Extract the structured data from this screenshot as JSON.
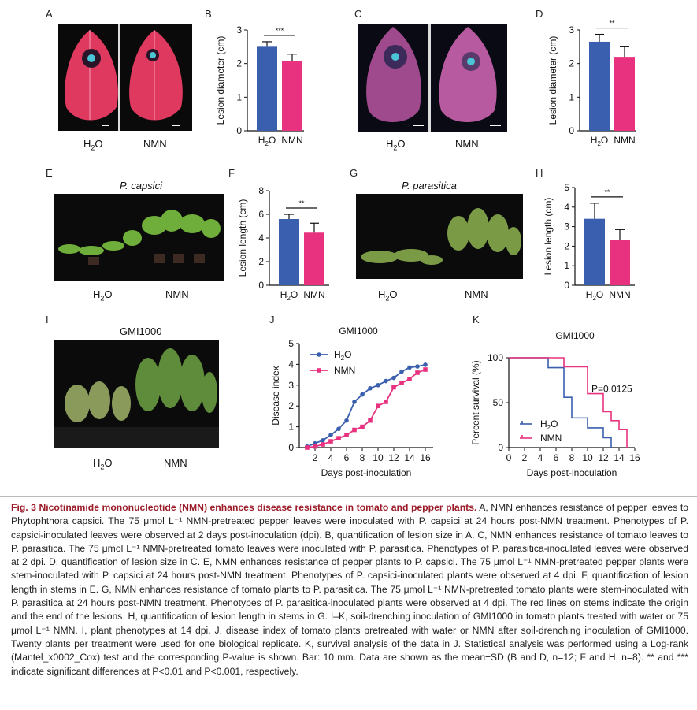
{
  "panels": {
    "A": {
      "letter": "A",
      "label_left": "H",
      "label_left_sub": "2",
      "label_left_tail": "O",
      "label_right": "NMN"
    },
    "B": {
      "letter": "B"
    },
    "C": {
      "letter": "C",
      "label_left": "H",
      "label_left_sub": "2",
      "label_left_tail": "O",
      "label_right": "NMN"
    },
    "D": {
      "letter": "D"
    },
    "E": {
      "letter": "E",
      "title": "P. capsici",
      "label_left": "H",
      "label_left_sub": "2",
      "label_left_tail": "O",
      "label_right": "NMN"
    },
    "F": {
      "letter": "F"
    },
    "G": {
      "letter": "G",
      "title": "P. parasitica",
      "label_left": "H",
      "label_left_sub": "2",
      "label_left_tail": "O",
      "label_right": "NMN"
    },
    "H": {
      "letter": "H"
    },
    "I": {
      "letter": "I",
      "title": "GMI1000",
      "label_left": "H",
      "label_left_sub": "2",
      "label_left_tail": "O",
      "label_right": "NMN"
    },
    "J": {
      "letter": "J"
    },
    "K": {
      "letter": "K"
    }
  },
  "colors": {
    "h2o": "#3a5fae",
    "nmn": "#e8327f",
    "caption_title": "#9b1c28"
  },
  "chart_data": [
    {
      "id": "B",
      "type": "bar",
      "categories": [
        "H2O",
        "NMN"
      ],
      "values": [
        2.5,
        2.08
      ],
      "errors": [
        0.15,
        0.2
      ],
      "ylabel": "Lesion diameter (cm)",
      "ylim": [
        0,
        3
      ],
      "yticks": [
        0,
        1,
        2,
        3
      ],
      "significance": "***"
    },
    {
      "id": "D",
      "type": "bar",
      "categories": [
        "H2O",
        "NMN"
      ],
      "values": [
        2.65,
        2.2
      ],
      "errors": [
        0.22,
        0.3
      ],
      "ylabel": "Lesion diameter (cm)",
      "ylim": [
        0,
        3
      ],
      "yticks": [
        0,
        1,
        2,
        3
      ],
      "significance": "**"
    },
    {
      "id": "F",
      "type": "bar",
      "categories": [
        "H2O",
        "NMN"
      ],
      "values": [
        5.6,
        4.45
      ],
      "errors": [
        0.4,
        0.8
      ],
      "ylabel": "Lesion length (cm)",
      "ylim": [
        0,
        8
      ],
      "yticks": [
        0,
        2,
        4,
        6,
        8
      ],
      "significance": "**"
    },
    {
      "id": "H",
      "type": "bar",
      "categories": [
        "H2O",
        "NMN"
      ],
      "values": [
        3.4,
        2.3
      ],
      "errors": [
        0.8,
        0.55
      ],
      "ylabel": "Lesion length (cm)",
      "ylim": [
        0,
        5
      ],
      "yticks": [
        0,
        1,
        2,
        3,
        4,
        5
      ],
      "significance": "**"
    },
    {
      "id": "J",
      "type": "line",
      "title": "GMI1000",
      "xlabel": "Days post-inoculation",
      "ylabel": "Disease index",
      "xlim": [
        0,
        17
      ],
      "ylim": [
        0,
        5
      ],
      "xticks": [
        2,
        4,
        6,
        8,
        10,
        12,
        14,
        16
      ],
      "yticks": [
        0,
        1,
        2,
        3,
        4,
        5
      ],
      "legend": "top-left",
      "series": [
        {
          "name": "H2O",
          "x": [
            1,
            2,
            3,
            4,
            5,
            6,
            7,
            8,
            9,
            10,
            11,
            12,
            13,
            14,
            15,
            16
          ],
          "y": [
            0.05,
            0.2,
            0.35,
            0.6,
            0.9,
            1.3,
            2.2,
            2.55,
            2.85,
            3.0,
            3.2,
            3.35,
            3.65,
            3.85,
            3.9,
            3.98
          ]
        },
        {
          "name": "NMN",
          "x": [
            1,
            2,
            3,
            4,
            5,
            6,
            7,
            8,
            9,
            10,
            11,
            12,
            13,
            14,
            15,
            16
          ],
          "y": [
            0.0,
            0.05,
            0.15,
            0.3,
            0.45,
            0.6,
            0.85,
            1.0,
            1.3,
            2.0,
            2.2,
            2.9,
            3.1,
            3.3,
            3.6,
            3.75
          ]
        }
      ]
    },
    {
      "id": "K",
      "type": "line",
      "title": "GMI1000",
      "xlabel": "Days post-inoculation",
      "ylabel": "Percent survival (%)",
      "xlim": [
        0,
        16
      ],
      "ylim": [
        0,
        100
      ],
      "xticks": [
        0,
        2,
        4,
        6,
        8,
        10,
        12,
        14,
        16
      ],
      "yticks": [
        0,
        50,
        100
      ],
      "legend": "bottom-left",
      "annotation": "P=0.0125",
      "series": [
        {
          "name": "H2O",
          "steps": [
            [
              0,
              100
            ],
            [
              5,
              100
            ],
            [
              5,
              89
            ],
            [
              7,
              89
            ],
            [
              7,
              56
            ],
            [
              8,
              56
            ],
            [
              8,
              33
            ],
            [
              10,
              33
            ],
            [
              10,
              22
            ],
            [
              12,
              22
            ],
            [
              12,
              11
            ],
            [
              13,
              11
            ],
            [
              13,
              0
            ]
          ]
        },
        {
          "name": "NMN",
          "steps": [
            [
              0,
              100
            ],
            [
              7,
              100
            ],
            [
              7,
              90
            ],
            [
              10,
              90
            ],
            [
              10,
              60
            ],
            [
              12,
              60
            ],
            [
              12,
              40
            ],
            [
              13,
              40
            ],
            [
              13,
              30
            ],
            [
              14,
              30
            ],
            [
              14,
              20
            ],
            [
              15,
              20
            ],
            [
              15,
              0
            ]
          ]
        }
      ]
    }
  ],
  "caption": {
    "title": "Fig. 3 Nicotinamide mononucleotide (NMN) enhances disease resistance in tomato and pepper plants.",
    "body": " A, NMN enhances resistance of pepper leaves to Phytophthora capsici. The 75 μmol L⁻¹ NMN-pretreated pepper leaves were inoculated with P. capsici at 24 hours post-NMN treatment. Phenotypes of P. capsici-inoculated leaves were observed at 2 days post-inoculation (dpi). B, quantification of lesion size in A. C, NMN enhances resistance of tomato leaves to P. parasitica. The 75 μmol L⁻¹ NMN-pretreated tomato leaves were inoculated with P. parasitica. Phenotypes of P. parasitica-inoculated leaves were observed at 2 dpi. D, quantification of lesion size in C. E, NMN enhances resistance of pepper plants to P. capsici. The 75 μmol L⁻¹ NMN-pretreated pepper plants were stem-inoculated with P. capsici at 24 hours post-NMN treatment. Phenotypes of P. capsici-inoculated plants were observed at 4 dpi. F, quantification of lesion length in stems in E. G, NMN enhances resistance of tomato plants to P. parasitica. The 75 μmol L⁻¹ NMN-pretreated tomato plants were stem-inoculated with P. parasitica at 24 hours post-NMN treatment. Phenotypes of P. parasitica-inoculated plants were observed at 4 dpi. The red lines on stems indicate the origin and the end of the lesions. H, quantification of lesion length in stems in G. I–K, soil-drenching inoculation of GMI1000 in tomato plants treated with water or 75 μmol L⁻¹ NMN. I, plant phenotypes at 14 dpi. J, disease index of tomato plants pretreated with water or NMN after soil-drenching inoculation of GMI1000. Twenty plants per treatment were used for one biological replicate. K, survival analysis of the data in J. Statistical analysis was performed using a Log-rank (Mantel_x0002_Cox) test and the corresponding P-value is shown. Bar: 10 mm. Data are shown as the mean±SD (B and D, n=12; F and H, n=8). ** and *** indicate significant differences at P<0.01 and P<0.001, respectively."
  }
}
